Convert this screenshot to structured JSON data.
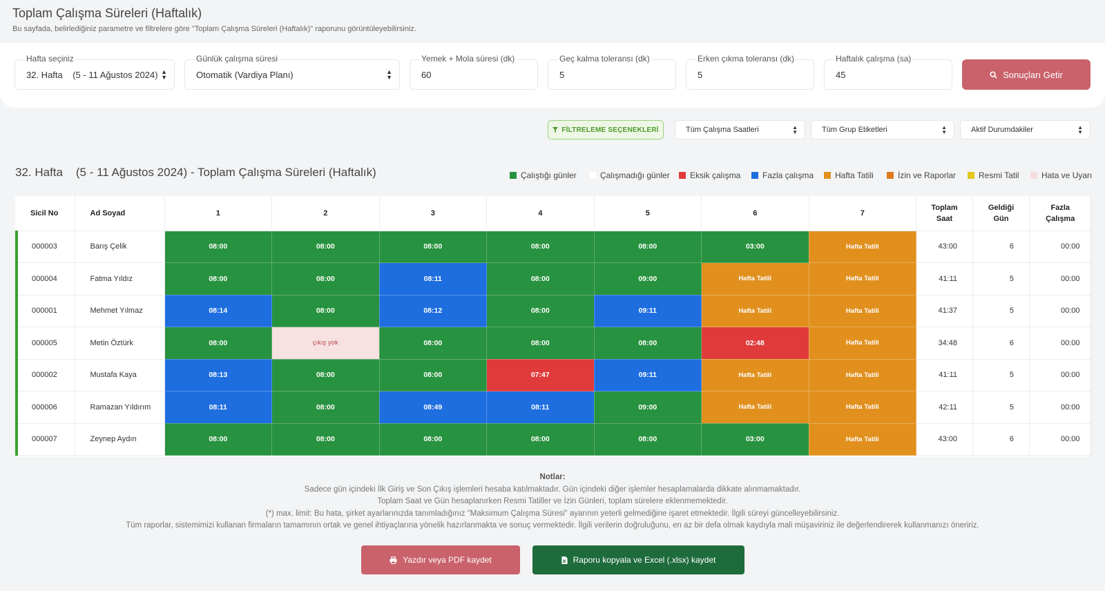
{
  "header": {
    "title": "Toplam Çalışma Süreleri (Haftalık)",
    "subtitle": "Bu sayfada, belirlediğiniz parametre ve filtrelere göre \"Toplam Çalışma Süreleri (Haftalık)\" raporunu görüntüleyebilirsiniz."
  },
  "filters": {
    "week": {
      "label": "Hafta seçiniz",
      "value": "32. Hafta    (5 - 11 Ağustos 2024)"
    },
    "daily": {
      "label": "Günlük çalışma süresi",
      "value": "Otomatik (Vardiya Planı)"
    },
    "meal": {
      "label": "Yemek + Mola süresi (dk)",
      "value": "60"
    },
    "late": {
      "label": "Geç kalma toleransı (dk)",
      "value": "5"
    },
    "early": {
      "label": "Erken çıkma toleransı (dk)",
      "value": "5"
    },
    "weekly": {
      "label": "Haftalık çalışma (sa)",
      "value": "45"
    },
    "submit_label": "Sonuçları Getir"
  },
  "toolbar": {
    "filter_options_label": "FİLTRELEME SEÇENEKLERİ",
    "hours_select": "Tüm Çalışma Saatleri",
    "group_select": "Tüm Grup Etiketleri",
    "status_select": "Aktif Durumdakiler"
  },
  "report": {
    "title": "32. Hafta    (5 - 11 Ağustos 2024) - Toplam Çalışma Süreleri (Haftalık)"
  },
  "legend": [
    {
      "label": "Çalıştığı günler",
      "color": "#27923f"
    },
    {
      "label": "Çalışmadığı günler",
      "color": "#ffffff"
    },
    {
      "label": "Eksik çalışma",
      "color": "#e03a3a"
    },
    {
      "label": "Fazla çalışma",
      "color": "#1e6ee0"
    },
    {
      "label": "Hafta Tatili",
      "color": "#e1901e"
    },
    {
      "label": "İzin ve Raporlar",
      "color": "#e07a1e"
    },
    {
      "label": "Resmi Tatil",
      "color": "#e3c81e"
    },
    {
      "label": "Hata ve Uyarı",
      "color": "#f6dede"
    }
  ],
  "colors": {
    "work": "#27923f",
    "over": "#1e6ee0",
    "under": "#e03a3a",
    "weekend": "#e1901e",
    "error": "#f7e1e1"
  },
  "table": {
    "headers": {
      "sicil": "Sicil No",
      "name": "Ad Soyad",
      "days": [
        "1",
        "2",
        "3",
        "4",
        "5",
        "6",
        "7"
      ],
      "total_line1": "Toplam",
      "total_line2": "Saat",
      "came_line1": "Geldiği",
      "came_line2": "Gün",
      "over_line1": "Fazla",
      "over_line2": "Çalışma"
    },
    "rows": [
      {
        "sicil": "000003",
        "name": "Barış Çelik",
        "days": [
          {
            "t": "08:00",
            "s": "work"
          },
          {
            "t": "08:00",
            "s": "work"
          },
          {
            "t": "08:00",
            "s": "work"
          },
          {
            "t": "08:00",
            "s": "work"
          },
          {
            "t": "08:00",
            "s": "work"
          },
          {
            "t": "03:00",
            "s": "work"
          },
          {
            "t": "Hafta Tatili",
            "s": "weekend"
          }
        ],
        "total": "43:00",
        "came": "6",
        "overtime": "00:00"
      },
      {
        "sicil": "000004",
        "name": "Fatma Yıldız",
        "days": [
          {
            "t": "08:00",
            "s": "work"
          },
          {
            "t": "08:00",
            "s": "work"
          },
          {
            "t": "08:11",
            "s": "over"
          },
          {
            "t": "08:00",
            "s": "work"
          },
          {
            "t": "09:00",
            "s": "work"
          },
          {
            "t": "Hafta Tatili",
            "s": "weekend"
          },
          {
            "t": "Hafta Tatili",
            "s": "weekend"
          }
        ],
        "total": "41:11",
        "came": "5",
        "overtime": "00:00"
      },
      {
        "sicil": "000001",
        "name": "Mehmet Yılmaz",
        "days": [
          {
            "t": "08:14",
            "s": "over"
          },
          {
            "t": "08:00",
            "s": "work"
          },
          {
            "t": "08:12",
            "s": "over"
          },
          {
            "t": "08:00",
            "s": "work"
          },
          {
            "t": "09:11",
            "s": "over"
          },
          {
            "t": "Hafta Tatili",
            "s": "weekend"
          },
          {
            "t": "Hafta Tatili",
            "s": "weekend"
          }
        ],
        "total": "41:37",
        "came": "5",
        "overtime": "00:00"
      },
      {
        "sicil": "000005",
        "name": "Metin Öztürk",
        "days": [
          {
            "t": "08:00",
            "s": "work"
          },
          {
            "t": "çıkış yok",
            "s": "error"
          },
          {
            "t": "08:00",
            "s": "work"
          },
          {
            "t": "08:00",
            "s": "work"
          },
          {
            "t": "08:00",
            "s": "work"
          },
          {
            "t": "02:48",
            "s": "under"
          },
          {
            "t": "Hafta Tatili",
            "s": "weekend"
          }
        ],
        "total": "34:48",
        "came": "6",
        "overtime": "00:00"
      },
      {
        "sicil": "000002",
        "name": "Mustafa Kaya",
        "days": [
          {
            "t": "08:13",
            "s": "over"
          },
          {
            "t": "08:00",
            "s": "work"
          },
          {
            "t": "08:00",
            "s": "work"
          },
          {
            "t": "07:47",
            "s": "under"
          },
          {
            "t": "09:11",
            "s": "over"
          },
          {
            "t": "Hafta Tatili",
            "s": "weekend"
          },
          {
            "t": "Hafta Tatili",
            "s": "weekend"
          }
        ],
        "total": "41:11",
        "came": "5",
        "overtime": "00:00"
      },
      {
        "sicil": "000006",
        "name": "Ramazan Yıldırım",
        "days": [
          {
            "t": "08:11",
            "s": "over"
          },
          {
            "t": "08:00",
            "s": "work"
          },
          {
            "t": "08:49",
            "s": "over"
          },
          {
            "t": "08:11",
            "s": "over"
          },
          {
            "t": "09:00",
            "s": "work"
          },
          {
            "t": "Hafta Tatili",
            "s": "weekend"
          },
          {
            "t": "Hafta Tatili",
            "s": "weekend"
          }
        ],
        "total": "42:11",
        "came": "5",
        "overtime": "00:00"
      },
      {
        "sicil": "000007",
        "name": "Zeynep Aydın",
        "days": [
          {
            "t": "08:00",
            "s": "work"
          },
          {
            "t": "08:00",
            "s": "work"
          },
          {
            "t": "08:00",
            "s": "work"
          },
          {
            "t": "08:00",
            "s": "work"
          },
          {
            "t": "08:00",
            "s": "work"
          },
          {
            "t": "03:00",
            "s": "work"
          },
          {
            "t": "Hafta Tatili",
            "s": "weekend"
          }
        ],
        "total": "43:00",
        "came": "6",
        "overtime": "00:00"
      }
    ]
  },
  "notes": {
    "title": "Notlar:",
    "lines": [
      "Sadece gün içindeki İlk Giriş ve Son Çıkış işlemleri hesaba katılmaktadır. Gün içindeki diğer işlemler hesaplamalarda dikkate alınmamaktadır.",
      "Toplam Saat ve Gün hesaplanırken Resmi Tatiller ve İzin Günleri, toplam sürelere eklenmemektedir.",
      "(*) max. limit: Bu hata, şirket ayarlarınızda tanımladığınız \"Maksimum Çalışma Süresi\" ayarının yeterli gelmediğine işaret etmektedir. İlgili süreyi güncelleyebilirsiniz.",
      "Tüm raporlar, sistemimizi kullanan firmaların tamamının ortak ve genel ihtiyaçlarına yönelik hazırlanmakta ve sonuç vermektedir. İlgili verilerin doğruluğunu, en az bir defa olmak kaydıyla mali müşaviriniz ile değerlendirerek kullanmanızı öneririz."
    ]
  },
  "actions": {
    "pdf_label": "Yazdır veya PDF kaydet",
    "excel_label": "Raporu kopyala ve Excel (.xlsx) kaydet"
  }
}
